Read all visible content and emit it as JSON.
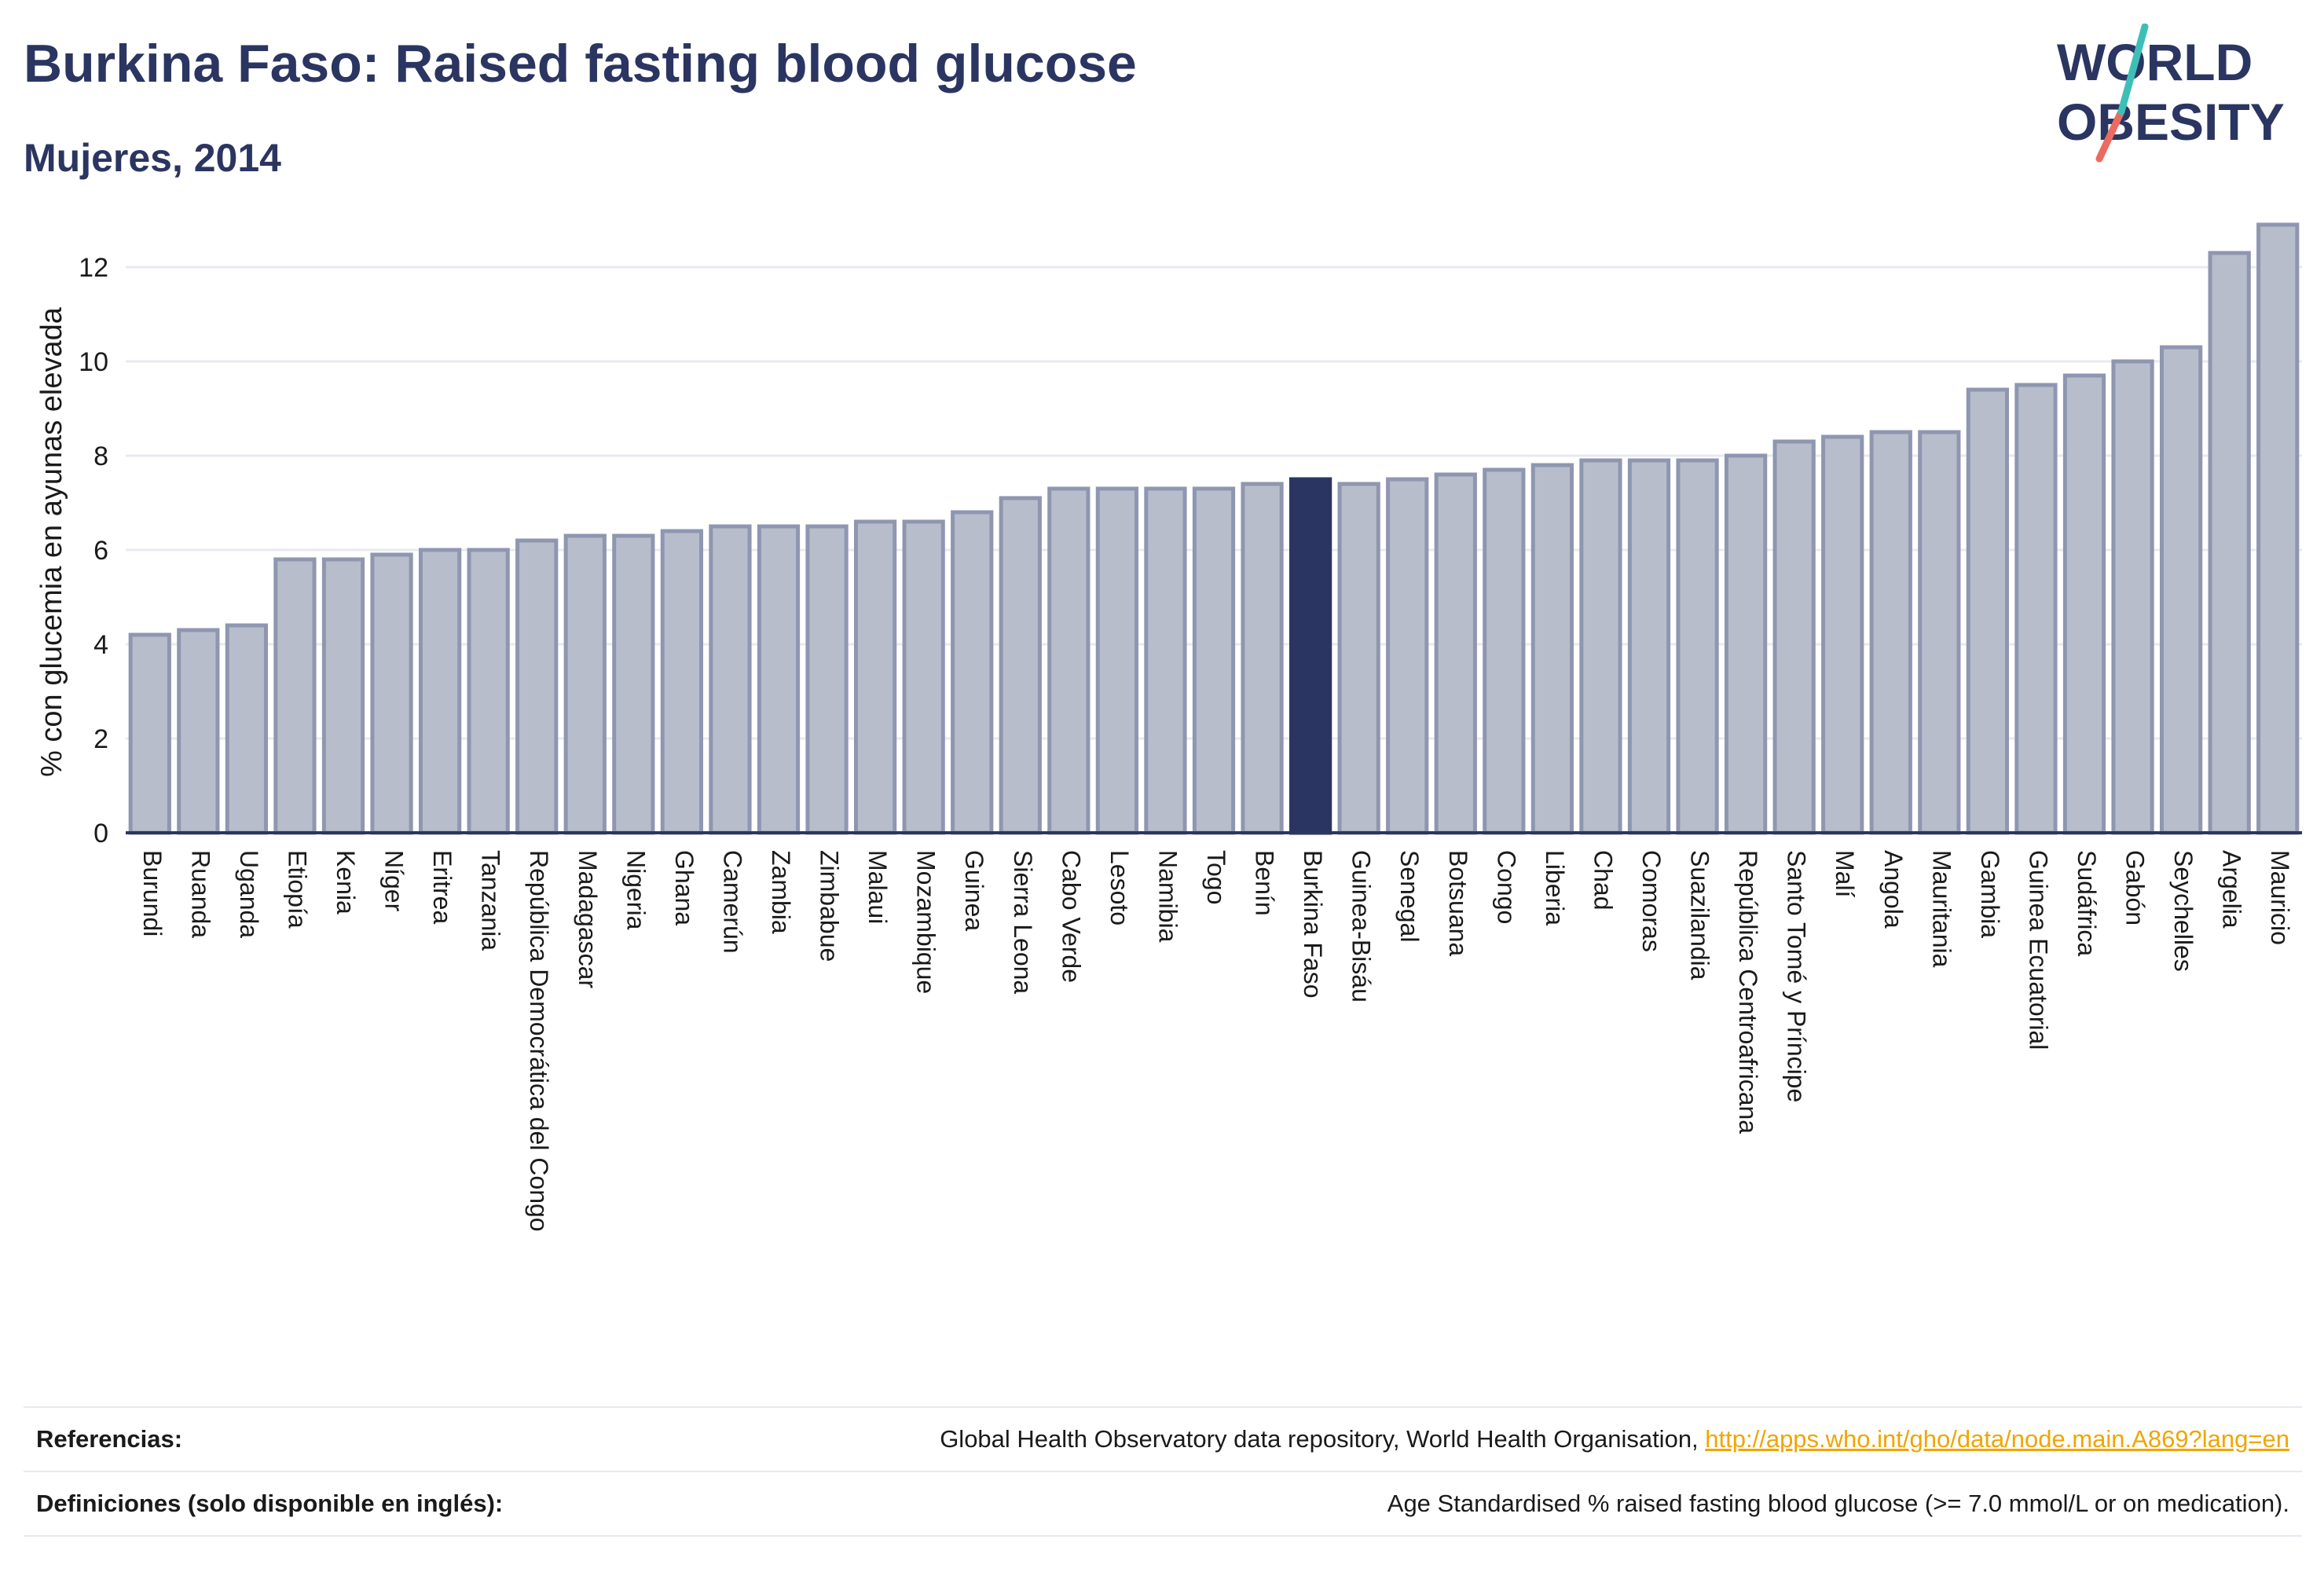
{
  "header": {
    "title": "Burkina Faso: Raised fasting blood glucose",
    "subtitle": "Mujeres, 2014"
  },
  "logo": {
    "line1": "WORLD",
    "line2": "OBESITY",
    "colors": {
      "text": "#2b3561",
      "slash_teal": "#3dbfb8",
      "slash_coral": "#ec6a5e"
    }
  },
  "chart_data": {
    "type": "bar",
    "title": "",
    "xlabel": "",
    "ylabel": "% con glucemia en ayunas elevada",
    "ylim": [
      0,
      13
    ],
    "yticks": [
      0,
      2,
      4,
      6,
      8,
      10,
      12
    ],
    "grid": true,
    "highlight": "Burkina Faso",
    "colors": {
      "bar": "#b8bdcc",
      "bar_border": "#8f96b0",
      "highlight": "#2b3561"
    },
    "categories": [
      "Burundi",
      "Ruanda",
      "Uganda",
      "Etiopía",
      "Kenia",
      "Níger",
      "Eritrea",
      "Tanzania",
      "República Democrática del Congo",
      "Madagascar",
      "Nigeria",
      "Ghana",
      "Camerún",
      "Zambia",
      "Zimbabue",
      "Malaui",
      "Mozambique",
      "Guinea",
      "Sierra Leona",
      "Cabo Verde",
      "Lesoto",
      "Namibia",
      "Togo",
      "Benín",
      "Burkina Faso",
      "Guinea-Bisáu",
      "Senegal",
      "Botsuana",
      "Congo",
      "Liberia",
      "Chad",
      "Comoras",
      "Suazilandia",
      "República Centroafricana",
      "Santo Tomé y Príncipe",
      "Malí",
      "Angola",
      "Mauritania",
      "Gambia",
      "Guinea Ecuatorial",
      "Sudáfrica",
      "Gabón",
      "Seychelles",
      "Argelia",
      "Mauricio"
    ],
    "values": [
      4.2,
      4.3,
      4.4,
      5.8,
      5.8,
      5.9,
      6.0,
      6.0,
      6.2,
      6.3,
      6.3,
      6.4,
      6.5,
      6.5,
      6.5,
      6.6,
      6.6,
      6.8,
      7.1,
      7.3,
      7.3,
      7.3,
      7.3,
      7.4,
      7.5,
      7.4,
      7.5,
      7.6,
      7.7,
      7.8,
      7.9,
      7.9,
      7.9,
      8.0,
      8.3,
      8.4,
      8.5,
      8.5,
      9.4,
      9.5,
      9.7,
      10.0,
      10.3,
      12.3,
      12.9
    ]
  },
  "references": {
    "label": "Referencias:",
    "text": "Global Health Observatory data repository, World Health Organisation, ",
    "link": "http://apps.who.int/gho/data/node.main.A869?lang=en"
  },
  "definitions": {
    "label": "Definiciones (solo disponible en inglés):",
    "text": "Age Standardised % raised fasting blood glucose (>= 7.0 mmol/L or on medication)."
  }
}
